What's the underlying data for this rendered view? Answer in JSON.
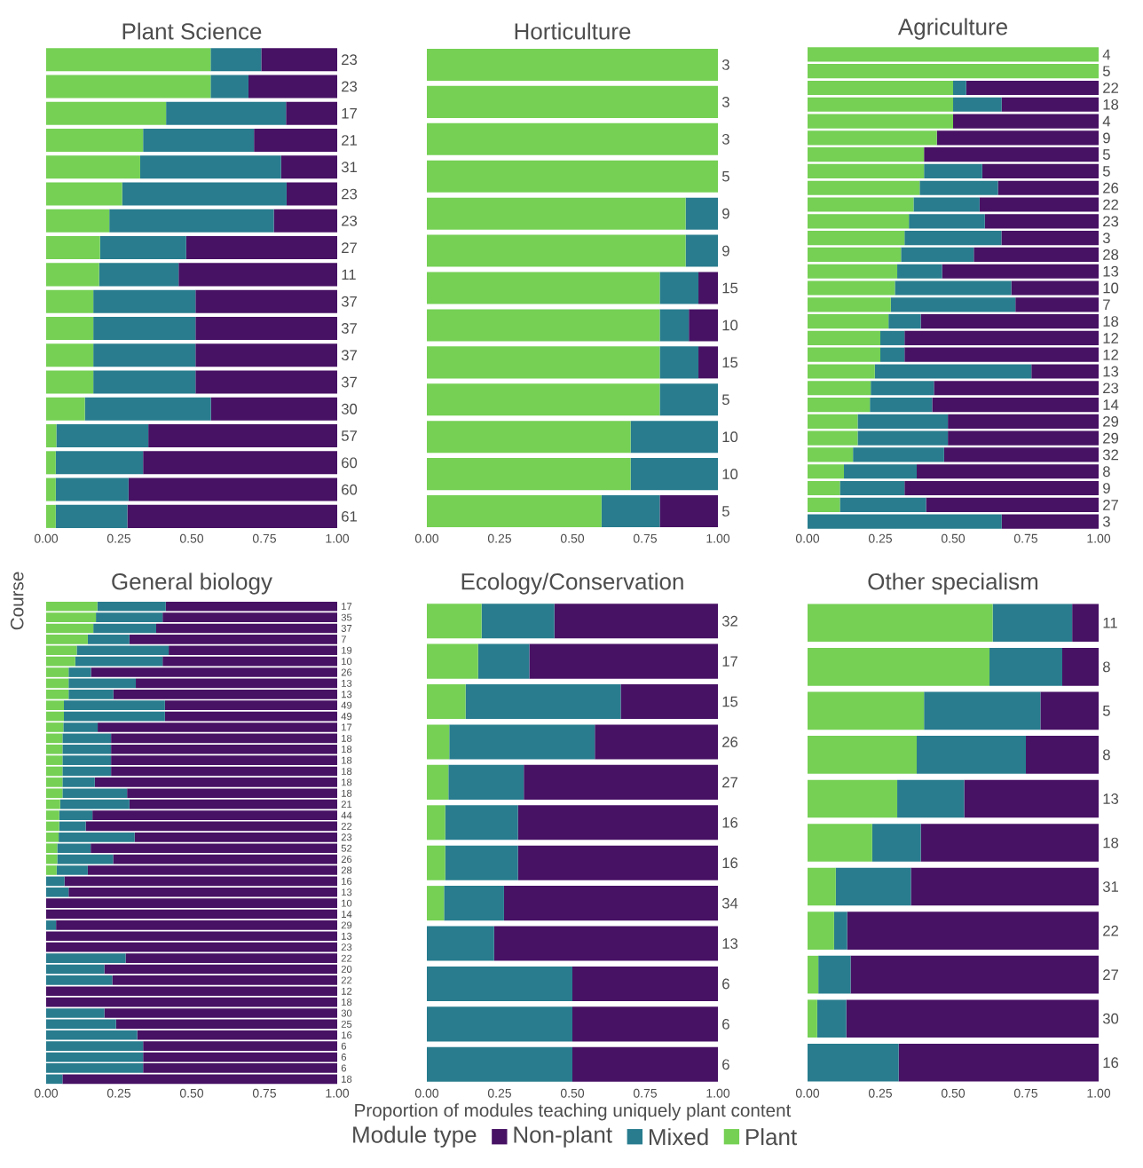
{
  "chart_data": [
    {
      "type": "bar",
      "orientation": "horizontal",
      "stacked": true,
      "title": "Plant Science",
      "categories": [
        null,
        null,
        null,
        null,
        null,
        null,
        null,
        null,
        null,
        null,
        null,
        null,
        null,
        null,
        null,
        null,
        null,
        null
      ],
      "series": [
        {
          "color": "#75d054",
          "values": [
            0.565,
            0.565,
            0.412,
            0.333,
            0.323,
            0.261,
            0.217,
            0.185,
            0.182,
            0.162,
            0.162,
            0.162,
            0.162,
            0.133,
            0.035,
            0.033,
            0.033,
            0.033
          ]
        },
        {
          "color": "#287c8e",
          "values": [
            0.174,
            0.13,
            0.412,
            0.381,
            0.484,
            0.565,
            0.565,
            0.296,
            0.273,
            0.351,
            0.351,
            0.351,
            0.351,
            0.433,
            0.316,
            0.3,
            0.25,
            0.246
          ]
        },
        {
          "color": "#471164",
          "values": [
            0.261,
            0.305,
            0.176,
            0.286,
            0.193,
            0.174,
            0.218,
            0.519,
            0.545,
            0.487,
            0.487,
            0.487,
            0.487,
            0.434,
            0.649,
            0.667,
            0.717,
            0.721
          ]
        }
      ],
      "annotations": [
        "23",
        "23",
        "17",
        "21",
        "31",
        "23",
        "23",
        "27",
        "11",
        "37",
        "37",
        "37",
        "37",
        "30",
        "57",
        "60",
        "60",
        "61"
      ],
      "xlim": [
        0,
        1
      ],
      "xticks": [
        {
          "value": 0,
          "label": "0.00"
        },
        {
          "value": 0.25,
          "label": "0.25"
        },
        {
          "value": 0.5,
          "label": "0.50"
        },
        {
          "value": 0.75,
          "label": "0.75"
        },
        {
          "value": 1,
          "label": "1.00"
        }
      ]
    },
    {
      "type": "bar",
      "orientation": "horizontal",
      "stacked": true,
      "title": "Horticulture",
      "categories": [
        null,
        null,
        null,
        null,
        null,
        null,
        null,
        null,
        null,
        null,
        null,
        null,
        null
      ],
      "series": [
        {
          "color": "#75d054",
          "values": [
            1,
            1,
            1,
            1,
            0.889,
            0.889,
            0.8,
            0.8,
            0.8,
            0.8,
            0.7,
            0.7,
            0.6
          ]
        },
        {
          "color": "#287c8e",
          "values": [
            0,
            0,
            0,
            0,
            0.111,
            0.111,
            0.133,
            0.1,
            0.133,
            0.2,
            0.3,
            0.3,
            0.2
          ]
        },
        {
          "color": "#471164",
          "values": [
            0,
            0,
            0,
            0,
            0,
            0,
            0.067,
            0.1,
            0.067,
            0,
            0,
            0,
            0.2
          ]
        }
      ],
      "annotations": [
        "3",
        "3",
        "3",
        "5",
        "9",
        "9",
        "15",
        "10",
        "15",
        "5",
        "10",
        "10",
        "5"
      ],
      "xlim": [
        0,
        1
      ],
      "xticks": [
        {
          "value": 0,
          "label": "0.00"
        },
        {
          "value": 0.25,
          "label": "0.25"
        },
        {
          "value": 0.5,
          "label": "0.50"
        },
        {
          "value": 0.75,
          "label": "0.75"
        },
        {
          "value": 1,
          "label": "1.00"
        }
      ]
    },
    {
      "type": "bar",
      "orientation": "horizontal",
      "stacked": true,
      "title": "Agriculture",
      "categories": [
        null,
        null,
        null,
        null,
        null,
        null,
        null,
        null,
        null,
        null,
        null,
        null,
        null,
        null,
        null,
        null,
        null,
        null,
        null,
        null,
        null,
        null,
        null,
        null,
        null,
        null,
        null,
        null,
        null
      ],
      "series": [
        {
          "color": "#75d054",
          "values": [
            1,
            1,
            0.5,
            0.5,
            0.5,
            0.444,
            0.4,
            0.4,
            0.385,
            0.364,
            0.348,
            0.333,
            0.321,
            0.308,
            0.3,
            0.286,
            0.278,
            0.25,
            0.25,
            0.231,
            0.217,
            0.214,
            0.172,
            0.172,
            0.156,
            0.125,
            0.111,
            0.111,
            0
          ]
        },
        {
          "color": "#287c8e",
          "values": [
            0,
            0,
            0.045,
            0.167,
            0,
            0,
            0,
            0.2,
            0.269,
            0.227,
            0.261,
            0.333,
            0.25,
            0.154,
            0.4,
            0.428,
            0.111,
            0.083,
            0.083,
            0.538,
            0.217,
            0.214,
            0.31,
            0.31,
            0.313,
            0.25,
            0.222,
            0.296,
            0.667
          ]
        },
        {
          "color": "#471164",
          "values": [
            0,
            0,
            0.455,
            0.333,
            0.5,
            0.556,
            0.6,
            0.4,
            0.346,
            0.409,
            0.391,
            0.334,
            0.429,
            0.538,
            0.3,
            0.286,
            0.611,
            0.667,
            0.667,
            0.231,
            0.566,
            0.572,
            0.518,
            0.518,
            0.531,
            0.625,
            0.667,
            0.593,
            0.333
          ]
        }
      ],
      "annotations": [
        "4",
        "5",
        "22",
        "18",
        "4",
        "9",
        "5",
        "5",
        "26",
        "22",
        "23",
        "3",
        "28",
        "13",
        "10",
        "7",
        "18",
        "12",
        "12",
        "13",
        "23",
        "14",
        "29",
        "29",
        "32",
        "8",
        "9",
        "27",
        "3"
      ],
      "xlim": [
        0,
        1
      ],
      "xticks": [
        {
          "value": 0,
          "label": "0.00"
        },
        {
          "value": 0.25,
          "label": "0.25"
        },
        {
          "value": 0.5,
          "label": "0.50"
        },
        {
          "value": 0.75,
          "label": "0.75"
        },
        {
          "value": 1,
          "label": "1.00"
        }
      ]
    },
    {
      "type": "bar",
      "orientation": "horizontal",
      "stacked": true,
      "title": "General biology",
      "ylabel": "Course",
      "categories": [
        null,
        null,
        null,
        null,
        null,
        null,
        null,
        null,
        null,
        null,
        null,
        null,
        null,
        null,
        null,
        null,
        null,
        null,
        null,
        null,
        null,
        null,
        null,
        null,
        null,
        null,
        null,
        null,
        null,
        null,
        null,
        null,
        null,
        null,
        null,
        null,
        null,
        null,
        null,
        null,
        null,
        null,
        null,
        null
      ],
      "series": [
        {
          "color": "#75d054",
          "values": [
            0.176,
            0.171,
            0.162,
            0.143,
            0.105,
            0.1,
            0.077,
            0.077,
            0.077,
            0.061,
            0.061,
            0.059,
            0.056,
            0.056,
            0.056,
            0.056,
            0.056,
            0.056,
            0.048,
            0.045,
            0.045,
            0.043,
            0.038,
            0.038,
            0.036,
            0,
            0,
            0,
            0,
            0,
            0,
            0,
            0,
            0,
            0,
            0,
            0,
            0,
            0,
            0,
            0,
            0,
            0,
            0
          ]
        },
        {
          "color": "#287c8e",
          "values": [
            0.235,
            0.229,
            0.216,
            0.143,
            0.316,
            0.3,
            0.077,
            0.231,
            0.154,
            0.347,
            0.347,
            0.118,
            0.167,
            0.167,
            0.167,
            0.167,
            0.111,
            0.222,
            0.238,
            0.114,
            0.091,
            0.261,
            0.115,
            0.192,
            0.107,
            0.063,
            0.077,
            0,
            0,
            0.034,
            0,
            0,
            0.273,
            0.2,
            0.227,
            0,
            0,
            0.2,
            0.24,
            0.313,
            0.333,
            0.333,
            0.333,
            0.056
          ]
        },
        {
          "color": "#471164",
          "values": [
            0.589,
            0.6,
            0.622,
            0.714,
            0.579,
            0.6,
            0.846,
            0.692,
            0.769,
            0.592,
            0.592,
            0.823,
            0.777,
            0.777,
            0.777,
            0.777,
            0.833,
            0.722,
            0.714,
            0.841,
            0.864,
            0.696,
            0.847,
            0.77,
            0.857,
            0.937,
            0.923,
            1,
            1,
            0.966,
            1,
            1,
            0.727,
            0.8,
            0.773,
            1,
            1,
            0.8,
            0.76,
            0.687,
            0.667,
            0.667,
            0.667,
            0.944
          ]
        }
      ],
      "annotations": [
        "17",
        "35",
        "37",
        "7",
        "19",
        "10",
        "26",
        "13",
        "13",
        "49",
        "49",
        "17",
        "18",
        "18",
        "18",
        "18",
        "18",
        "18",
        "21",
        "44",
        "22",
        "23",
        "52",
        "26",
        "28",
        "16",
        "13",
        "10",
        "14",
        "29",
        "13",
        "23",
        "22",
        "20",
        "22",
        "12",
        "18",
        "30",
        "25",
        "16",
        "6",
        "6",
        "6",
        "18"
      ],
      "xlim": [
        0,
        1
      ],
      "xticks": [
        {
          "value": 0,
          "label": "0.00"
        },
        {
          "value": 0.25,
          "label": "0.25"
        },
        {
          "value": 0.5,
          "label": "0.50"
        },
        {
          "value": 0.75,
          "label": "0.75"
        },
        {
          "value": 1,
          "label": "1.00"
        }
      ]
    },
    {
      "type": "bar",
      "orientation": "horizontal",
      "stacked": true,
      "title": "Ecology/Conservation",
      "xlabel": "Proportion of modules teaching uniquely plant content",
      "legend": "bottom",
      "legend_title": "Module type",
      "categories": [
        null,
        null,
        null,
        null,
        null,
        null,
        null,
        null,
        null,
        null,
        null,
        null
      ],
      "series": [
        {
          "name": "Plant",
          "color": "#75d054",
          "values": [
            0.188,
            0.176,
            0.133,
            0.077,
            0.074,
            0.063,
            0.063,
            0.059,
            0,
            0,
            0,
            0
          ]
        },
        {
          "name": "Mixed",
          "color": "#287c8e",
          "values": [
            0.25,
            0.176,
            0.533,
            0.5,
            0.259,
            0.25,
            0.25,
            0.206,
            0.231,
            0.5,
            0.5,
            0.5
          ]
        },
        {
          "name": "Non-plant",
          "color": "#471164",
          "values": [
            0.562,
            0.648,
            0.334,
            0.423,
            0.667,
            0.687,
            0.687,
            0.735,
            0.769,
            0.5,
            0.5,
            0.5
          ]
        }
      ],
      "annotations": [
        "32",
        "17",
        "15",
        "26",
        "27",
        "16",
        "16",
        "34",
        "13",
        "6",
        "6",
        "6"
      ],
      "xlim": [
        0,
        1
      ],
      "xticks": [
        {
          "value": 0,
          "label": "0.00"
        },
        {
          "value": 0.25,
          "label": "0.25"
        },
        {
          "value": 0.5,
          "label": "0.50"
        },
        {
          "value": 0.75,
          "label": "0.75"
        },
        {
          "value": 1,
          "label": "1.00"
        }
      ]
    },
    {
      "type": "bar",
      "orientation": "horizontal",
      "stacked": true,
      "title": "Other specialism",
      "categories": [
        null,
        null,
        null,
        null,
        null,
        null,
        null,
        null,
        null,
        null,
        null
      ],
      "series": [
        {
          "color": "#75d054",
          "values": [
            0.636,
            0.625,
            0.4,
            0.375,
            0.308,
            0.222,
            0.097,
            0.091,
            0.037,
            0.033,
            0
          ]
        },
        {
          "color": "#287c8e",
          "values": [
            0.273,
            0.25,
            0.4,
            0.375,
            0.23,
            0.167,
            0.258,
            0.045,
            0.111,
            0.1,
            0.313
          ]
        },
        {
          "color": "#471164",
          "values": [
            0.091,
            0.125,
            0.2,
            0.25,
            0.462,
            0.611,
            0.645,
            0.864,
            0.852,
            0.867,
            0.687
          ]
        }
      ],
      "annotations": [
        "11",
        "8",
        "5",
        "8",
        "13",
        "18",
        "31",
        "22",
        "27",
        "30",
        "16"
      ],
      "xlim": [
        0,
        1
      ],
      "xticks": [
        {
          "value": 0,
          "label": "0.00"
        },
        {
          "value": 0.25,
          "label": "0.25"
        },
        {
          "value": 0.5,
          "label": "0.50"
        },
        {
          "value": 0.75,
          "label": "0.75"
        },
        {
          "value": 1,
          "label": "1.00"
        }
      ]
    }
  ]
}
